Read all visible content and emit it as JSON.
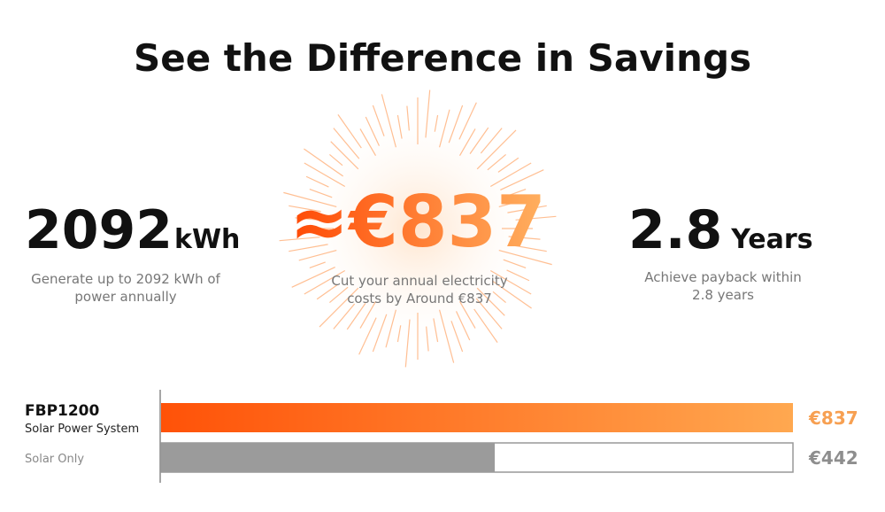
{
  "title": "See the Difference in Savings",
  "stats": [
    {
      "value": "2092",
      "unit": "kWh",
      "text": "Generate up to 2092 kWh of power annually",
      "lines": [
        "Generate up to 2092 kWh of",
        "power annually"
      ]
    },
    {
      "value": "≈€837",
      "lines": [
        "Cut your annual electricity",
        "costs by Around €837"
      ]
    },
    {
      "value": "2.8",
      "unit": "Years",
      "lines": [
        "Achieve payback within",
        "2.8 years"
      ]
    }
  ],
  "chart_data": {
    "type": "bar",
    "orientation": "horizontal",
    "categories": [
      "FBP1200",
      "Solar Only"
    ],
    "sublabels": [
      "Solar Power System",
      null
    ],
    "values": [
      837,
      442
    ],
    "value_labels": [
      "€837",
      "€442"
    ],
    "colors": [
      "#ff5208",
      "#9b9b9b"
    ]
  }
}
